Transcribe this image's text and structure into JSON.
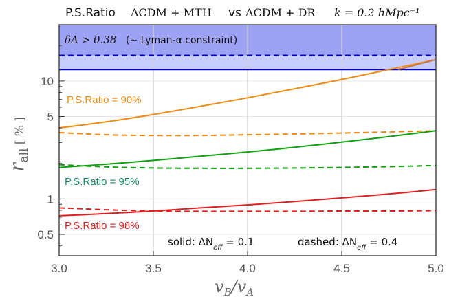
{
  "chart_data": {
    "type": "line",
    "title": {
      "prefix": "P.S.Ratio",
      "model1": "ΛCDM + MTH",
      "vs": "vs",
      "model2": "ΛCDM + DR",
      "k": "k = 0.2 hMpc⁻¹"
    },
    "xlabel": "vB/vA",
    "ylabel": "r_all  [ % ]",
    "xlim": [
      3.0,
      5.0
    ],
    "ylim": [
      0.33,
      30
    ],
    "yscale": "log",
    "x_ticks": [
      3.0,
      3.5,
      4.0,
      4.5,
      5.0
    ],
    "x_tick_labels": [
      "3.0",
      "3.5",
      "4.0",
      "4.5",
      "5.0"
    ],
    "y_ticks": [
      0.5,
      1,
      5,
      10
    ],
    "y_tick_labels": [
      "0.5",
      "1",
      "5",
      "10"
    ],
    "grid": true,
    "constraint": {
      "label_prefix": "δA > 0.38",
      "label_suffix": "(∼ Lyman-α constraint)",
      "solid_level": 12.5,
      "dashed_level": 16.5,
      "color": "#0000cc",
      "shade": "#c8cdff",
      "shade_dark": "#9ea2f5"
    },
    "annotations": [
      {
        "text": "P.S.Ratio = 90%",
        "color": "#f08a10"
      },
      {
        "text": "P.S.Ratio = 95%",
        "color": "#1a8a6a"
      },
      {
        "text": "P.S.Ratio = 98%",
        "color": "#e02020"
      }
    ],
    "legend": {
      "solid": "solid:  ΔN",
      "solid_sub": "eff",
      "solid_val": " = 0.1",
      "dashed": "dashed:  ΔN",
      "dashed_sub": "eff",
      "dashed_val": " = 0.4",
      "position": "bottom-right"
    },
    "series": [
      {
        "ratio": "90%",
        "style": "solid",
        "color": "#f08a10",
        "x": [
          3.0,
          3.25,
          3.5,
          3.75,
          4.0,
          4.25,
          4.5,
          4.75,
          5.0
        ],
        "values": [
          4.0,
          4.5,
          5.2,
          6.1,
          7.2,
          8.6,
          10.3,
          12.5,
          15.2
        ]
      },
      {
        "ratio": "90%",
        "style": "dashed",
        "color": "#f08a10",
        "x": [
          3.0,
          3.25,
          3.5,
          3.75,
          4.0,
          4.25,
          4.5,
          4.75,
          5.0
        ],
        "values": [
          3.65,
          3.5,
          3.45,
          3.45,
          3.5,
          3.55,
          3.62,
          3.7,
          3.78
        ]
      },
      {
        "ratio": "95%",
        "style": "solid",
        "color": "#10a010",
        "x": [
          3.0,
          3.25,
          3.5,
          3.75,
          4.0,
          4.25,
          4.5,
          4.75,
          5.0
        ],
        "values": [
          1.85,
          1.97,
          2.12,
          2.3,
          2.5,
          2.74,
          3.03,
          3.38,
          3.78
        ]
      },
      {
        "ratio": "95%",
        "style": "dashed",
        "color": "#10a010",
        "x": [
          3.0,
          3.25,
          3.5,
          3.75,
          4.0,
          4.25,
          4.5,
          4.75,
          5.0
        ],
        "values": [
          1.95,
          1.87,
          1.83,
          1.82,
          1.82,
          1.83,
          1.85,
          1.88,
          1.92
        ]
      },
      {
        "ratio": "98%",
        "style": "solid",
        "color": "#e02020",
        "x": [
          3.0,
          3.25,
          3.5,
          3.75,
          4.0,
          4.25,
          4.5,
          4.75,
          5.0
        ],
        "values": [
          0.72,
          0.75,
          0.79,
          0.84,
          0.89,
          0.95,
          1.02,
          1.1,
          1.2
        ]
      },
      {
        "ratio": "98%",
        "style": "dashed",
        "color": "#e02020",
        "x": [
          3.0,
          3.25,
          3.5,
          3.75,
          4.0,
          4.25,
          4.5,
          4.75,
          5.0
        ],
        "values": [
          0.84,
          0.81,
          0.79,
          0.785,
          0.785,
          0.785,
          0.79,
          0.79,
          0.795
        ]
      },
      {
        "ratio": "90%",
        "style": "solid-above",
        "color": "#c87850",
        "x": [
          4.8,
          4.9,
          5.0
        ],
        "values": [
          12.5,
          13.8,
          15.2
        ]
      }
    ]
  }
}
